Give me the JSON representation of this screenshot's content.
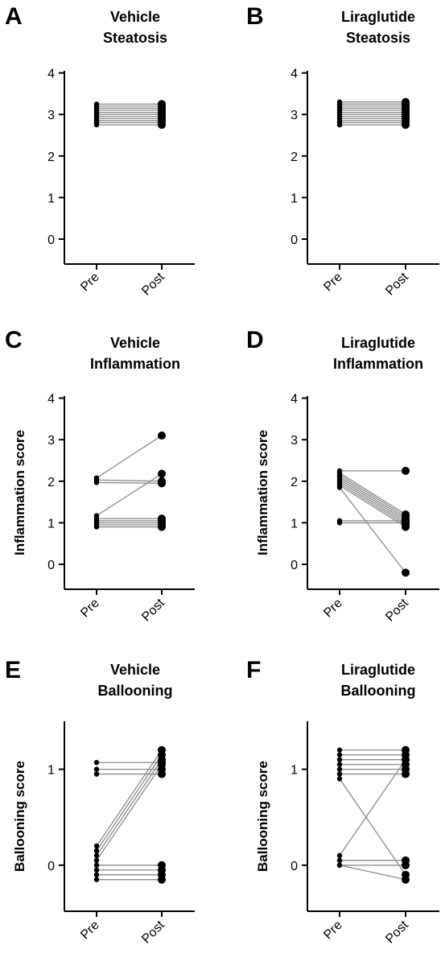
{
  "chart_data": [
    {
      "panel": "A",
      "type": "scatter",
      "title_lines": [
        "Vehicle",
        "Steatosis"
      ],
      "ylabel": "",
      "categories": [
        "Pre",
        "Post"
      ],
      "yticks": [
        0,
        1,
        2,
        3,
        4
      ],
      "ylim": [
        -0.6,
        4.05
      ],
      "pre": [
        2.75,
        2.8,
        2.85,
        2.9,
        2.95,
        3.0,
        3.05,
        3.1,
        3.15,
        3.2,
        3.25
      ],
      "post": [
        2.75,
        2.8,
        2.85,
        2.9,
        2.95,
        3.0,
        3.05,
        3.1,
        3.15,
        3.2,
        3.25
      ]
    },
    {
      "panel": "B",
      "type": "scatter",
      "title_lines": [
        "Liraglutide",
        "Steatosis"
      ],
      "ylabel": "",
      "categories": [
        "Pre",
        "Post"
      ],
      "yticks": [
        0,
        1,
        2,
        3,
        4
      ],
      "ylim": [
        -0.6,
        4.05
      ],
      "pre": [
        2.75,
        2.8,
        2.85,
        2.9,
        2.95,
        3.0,
        3.05,
        3.1,
        3.15,
        3.2,
        3.25,
        3.3
      ],
      "post": [
        2.75,
        2.8,
        2.85,
        2.9,
        2.95,
        3.0,
        3.05,
        3.1,
        3.15,
        3.2,
        3.25,
        3.3
      ]
    },
    {
      "panel": "C",
      "type": "scatter",
      "title_lines": [
        "Vehicle",
        "Inflammation"
      ],
      "ylabel": "Inflammation score",
      "categories": [
        "Pre",
        "Post"
      ],
      "yticks": [
        0,
        1,
        2,
        3,
        4
      ],
      "ylim": [
        -0.6,
        4.05
      ],
      "pre": [
        2.08,
        2.03,
        1.97,
        1.17,
        1.1,
        1.05,
        1.0,
        0.95,
        0.9
      ],
      "post": [
        3.1,
        2.0,
        1.95,
        2.18,
        1.1,
        1.05,
        1.0,
        0.95,
        0.9
      ]
    },
    {
      "panel": "D",
      "type": "scatter",
      "title_lines": [
        "Liraglutide",
        "Inflammation"
      ],
      "ylabel": "Inflammation score",
      "categories": [
        "Pre",
        "Post"
      ],
      "yticks": [
        0,
        1,
        2,
        3,
        4
      ],
      "ylim": [
        -0.6,
        4.05
      ],
      "pre": [
        2.25,
        2.2,
        2.15,
        2.1,
        2.05,
        2.0,
        1.95,
        1.9,
        1.85,
        1.05,
        1.0
      ],
      "post": [
        2.25,
        1.2,
        1.15,
        1.1,
        1.05,
        1.0,
        0.95,
        0.9,
        -0.2,
        1.05,
        1.0
      ]
    },
    {
      "panel": "E",
      "type": "scatter",
      "title_lines": [
        "Vehicle",
        "Ballooning"
      ],
      "ylabel": "Ballooning score",
      "categories": [
        "Pre",
        "Post"
      ],
      "yticks": [
        0,
        1
      ],
      "ylim": [
        -0.48,
        1.5
      ],
      "pre": [
        1.07,
        1.0,
        0.95,
        0.2,
        0.15,
        0.1,
        0.05,
        0.0,
        -0.05,
        -0.1,
        -0.15
      ],
      "post": [
        1.07,
        1.0,
        0.95,
        1.2,
        1.15,
        1.1,
        1.05,
        0.0,
        -0.05,
        -0.1,
        -0.15
      ]
    },
    {
      "panel": "F",
      "type": "scatter",
      "title_lines": [
        "Liraglutide",
        "Ballooning"
      ],
      "ylabel": "Ballooning score",
      "categories": [
        "Pre",
        "Post"
      ],
      "yticks": [
        0,
        1
      ],
      "ylim": [
        -0.48,
        1.5
      ],
      "pre": [
        1.2,
        1.15,
        1.1,
        1.05,
        1.0,
        0.95,
        0.9,
        0.1,
        0.05,
        0.0,
        0.0
      ],
      "post": [
        1.2,
        1.15,
        1.1,
        1.05,
        1.0,
        0.95,
        -0.1,
        1.1,
        0.05,
        0.0,
        -0.15
      ]
    }
  ]
}
